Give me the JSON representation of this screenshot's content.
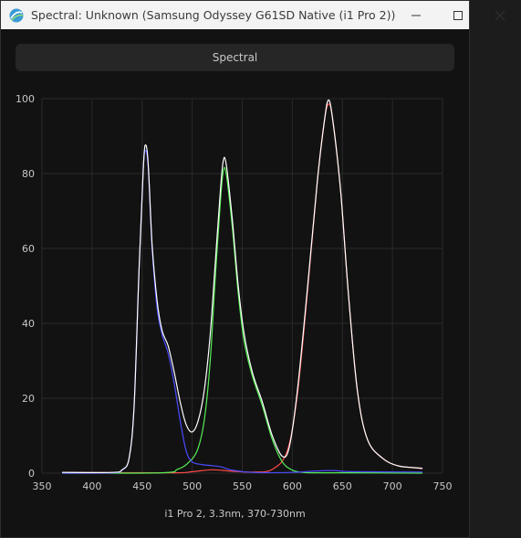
{
  "window": {
    "title": "Spectral: Unknown (Samsung Odyssey G61SD Native (i1 Pro 2))",
    "icons": {
      "app": "argyll-app-icon",
      "minimize": "minimize-icon",
      "maximize": "maximize-icon",
      "close": "close-icon"
    }
  },
  "header": {
    "label": "Spectral"
  },
  "footer": {
    "label": "i1 Pro 2, 3.3nm, 370-730nm"
  },
  "chart_data": {
    "type": "line",
    "title": "",
    "xlabel": "i1 Pro 2, 3.3nm, 370-730nm",
    "ylabel": "",
    "xlim": [
      350,
      750
    ],
    "ylim": [
      0,
      100
    ],
    "xticks": [
      350,
      400,
      450,
      500,
      550,
      600,
      650,
      700,
      750
    ],
    "yticks": [
      0,
      20,
      40,
      60,
      80,
      100
    ],
    "grid": true,
    "background": "#121212",
    "series": [
      {
        "color": "#ff4a4a",
        "x": [
          370,
          480,
          500,
          520,
          540,
          560,
          580,
          595,
          605,
          615,
          625,
          632,
          636,
          640,
          648,
          656,
          665,
          675,
          690,
          705,
          720,
          730
        ],
        "values": [
          0.2,
          0.1,
          0.4,
          0.9,
          0.5,
          0.3,
          1.0,
          6,
          21,
          48,
          78,
          94,
          98.5,
          95,
          76,
          48,
          22,
          9,
          4,
          2,
          1.5,
          1.2
        ]
      },
      {
        "color": "#55ee55",
        "x": [
          370,
          470,
          485,
          495,
          505,
          512,
          518,
          523,
          528,
          531,
          534,
          540,
          546,
          552,
          560,
          570,
          580,
          590,
          600,
          610,
          620,
          650,
          730
        ],
        "values": [
          0,
          0.1,
          1,
          2.5,
          6,
          14,
          30,
          52,
          72,
          80.5,
          80,
          66,
          48,
          35,
          26,
          18,
          9,
          3,
          0.8,
          0.2,
          0.1,
          0.1,
          0
        ]
      },
      {
        "color": "#4b4bff",
        "x": [
          370,
          420,
          430,
          437,
          442,
          447,
          451,
          453,
          456,
          460,
          465,
          470,
          476,
          482,
          488,
          494,
          500,
          510,
          520,
          530,
          540,
          560,
          600,
          620,
          640,
          660,
          730
        ],
        "values": [
          0,
          0.1,
          0.8,
          4,
          18,
          55,
          80,
          86,
          82,
          60,
          44,
          37,
          32,
          24,
          14,
          6,
          3,
          2.3,
          2,
          1.6,
          0.8,
          0.2,
          0.2,
          0.5,
          0.7,
          0.4,
          0.3
        ]
      },
      {
        "color": "#ffffff",
        "x": [
          370,
          420,
          430,
          437,
          442,
          447,
          451,
          453,
          456,
          460,
          465,
          470,
          476,
          482,
          488,
          494,
          500,
          506,
          512,
          518,
          523,
          528,
          531,
          534,
          540,
          546,
          552,
          560,
          570,
          580,
          590,
          597,
          605,
          615,
          625,
          632,
          636,
          640,
          648,
          656,
          665,
          675,
          690,
          705,
          720,
          730
        ],
        "values": [
          0.2,
          0.2,
          0.9,
          4,
          18,
          55,
          80,
          87.5,
          83,
          61,
          46,
          38,
          34,
          27,
          19,
          13,
          11,
          14,
          22,
          37,
          56,
          75,
          83.3,
          82.5,
          68,
          50,
          37,
          27,
          19,
          10,
          4.5,
          7,
          22,
          49,
          78,
          94,
          99.6,
          95,
          76,
          48,
          22,
          9,
          4,
          2,
          1.5,
          1.3
        ]
      }
    ]
  }
}
